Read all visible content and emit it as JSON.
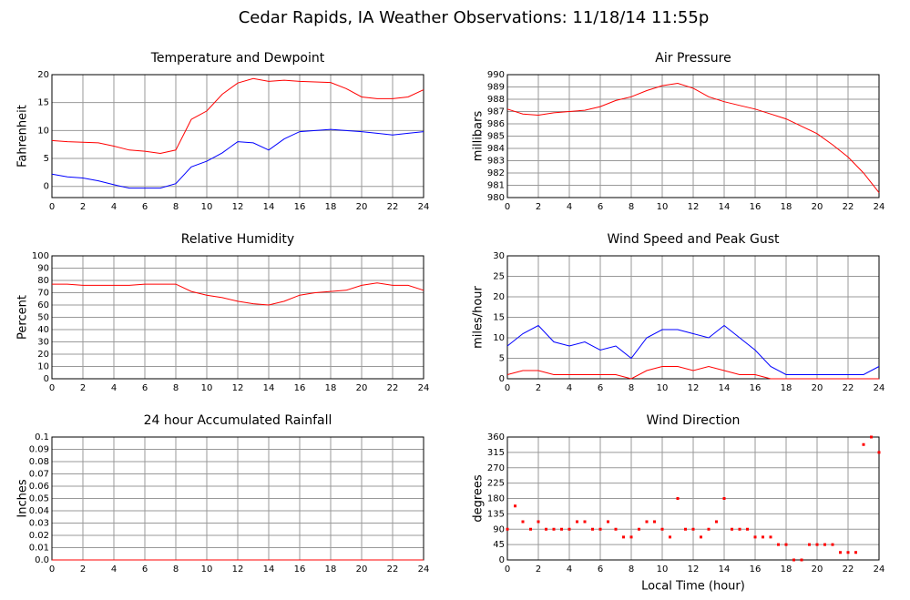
{
  "title": "Cedar Rapids, IA Weather Observations: 11/18/14 11:55p",
  "chart_data": [
    {
      "type": "line",
      "title": "Temperature and Dewpoint",
      "ylabel": "Fahrenheit",
      "x": [
        0,
        1,
        2,
        3,
        4,
        5,
        6,
        7,
        8,
        9,
        10,
        11,
        12,
        13,
        14,
        15,
        16,
        17,
        18,
        19,
        20,
        21,
        22,
        23,
        24
      ],
      "series": [
        {
          "color": "#ff0000",
          "values": [
            8.2,
            8,
            7.9,
            7.8,
            7.2,
            6.5,
            6.3,
            5.9,
            6.5,
            12,
            13.5,
            16.5,
            18.5,
            19.3,
            18.8,
            19,
            18.8,
            18.7,
            18.6,
            17.5,
            16,
            15.7,
            15.7,
            16,
            17.3
          ]
        },
        {
          "color": "#0000ff",
          "values": [
            2.2,
            1.7,
            1.5,
            1,
            0.3,
            -0.3,
            -0.3,
            -0.3,
            0.5,
            3.5,
            4.5,
            6,
            8,
            7.8,
            6.5,
            8.5,
            9.8,
            10,
            10.2,
            10,
            9.8,
            9.5,
            9.2,
            9.5,
            9.8
          ]
        }
      ],
      "xlim": [
        0,
        24
      ],
      "xticks": [
        0,
        2,
        4,
        6,
        8,
        10,
        12,
        14,
        16,
        18,
        20,
        22,
        24
      ],
      "ylim": [
        -2,
        20
      ],
      "yticks": [
        0,
        5,
        10,
        15,
        20
      ],
      "grid": true
    },
    {
      "type": "line",
      "title": "Air Pressure",
      "ylabel": "millibars",
      "x": [
        0,
        1,
        2,
        3,
        4,
        5,
        6,
        7,
        8,
        9,
        10,
        11,
        12,
        13,
        14,
        15,
        16,
        17,
        18,
        19,
        20,
        21,
        22,
        23,
        24
      ],
      "series": [
        {
          "color": "#ff0000",
          "values": [
            987.2,
            986.8,
            986.7,
            986.9,
            987,
            987.1,
            987.4,
            987.9,
            988.2,
            988.7,
            989.1,
            989.3,
            988.9,
            988.2,
            987.8,
            987.5,
            987.2,
            986.8,
            986.4,
            985.8,
            985.2,
            984.3,
            983.3,
            982,
            980.4
          ]
        }
      ],
      "xlim": [
        0,
        24
      ],
      "xticks": [
        0,
        2,
        4,
        6,
        8,
        10,
        12,
        14,
        16,
        18,
        20,
        22,
        24
      ],
      "ylim": [
        980,
        990
      ],
      "yticks": [
        980,
        981,
        982,
        983,
        984,
        985,
        986,
        987,
        988,
        989,
        990
      ],
      "grid": true
    },
    {
      "type": "line",
      "title": "Relative Humidity",
      "ylabel": "Percent",
      "x": [
        0,
        1,
        2,
        3,
        4,
        5,
        6,
        7,
        8,
        9,
        10,
        11,
        12,
        13,
        14,
        15,
        16,
        17,
        18,
        19,
        20,
        21,
        22,
        23,
        24
      ],
      "series": [
        {
          "color": "#ff0000",
          "values": [
            77,
            77,
            76,
            76,
            76,
            76,
            77,
            77,
            77,
            71,
            68,
            66,
            63,
            61,
            60,
            63,
            68,
            70,
            71,
            72,
            76,
            78,
            76,
            76,
            72
          ]
        }
      ],
      "xlim": [
        0,
        24
      ],
      "xticks": [
        0,
        2,
        4,
        6,
        8,
        10,
        12,
        14,
        16,
        18,
        20,
        22,
        24
      ],
      "ylim": [
        0,
        100
      ],
      "yticks": [
        0,
        10,
        20,
        30,
        40,
        50,
        60,
        70,
        80,
        90,
        100
      ],
      "grid": true
    },
    {
      "type": "line",
      "title": "Wind Speed and Peak Gust",
      "ylabel": "miles/hour",
      "x": [
        0,
        1,
        2,
        3,
        4,
        5,
        6,
        7,
        8,
        9,
        10,
        11,
        12,
        13,
        14,
        15,
        16,
        17,
        18,
        19,
        20,
        21,
        22,
        23,
        24
      ],
      "series": [
        {
          "color": "#0000ff",
          "values": [
            8,
            11,
            13,
            9,
            8,
            9,
            7,
            8,
            5,
            10,
            12,
            12,
            11,
            10,
            13,
            10,
            7,
            3,
            1,
            1,
            1,
            1,
            1,
            1,
            3
          ]
        },
        {
          "color": "#ff0000",
          "values": [
            1,
            2,
            2,
            1,
            1,
            1,
            1,
            1,
            0,
            2,
            3,
            3,
            2,
            3,
            2,
            1,
            1,
            0,
            0,
            0,
            0,
            0,
            0,
            0,
            0
          ]
        }
      ],
      "xlim": [
        0,
        24
      ],
      "xticks": [
        0,
        2,
        4,
        6,
        8,
        10,
        12,
        14,
        16,
        18,
        20,
        22,
        24
      ],
      "ylim": [
        0,
        30
      ],
      "yticks": [
        0,
        5,
        10,
        15,
        20,
        25,
        30
      ],
      "grid": true
    },
    {
      "type": "line",
      "title": "24 hour Accumulated Rainfall",
      "ylabel": "Inches",
      "x": [
        0,
        24
      ],
      "series": [
        {
          "color": "#ff0000",
          "values": [
            0,
            0
          ]
        }
      ],
      "xlim": [
        0,
        24
      ],
      "xticks": [
        0,
        2,
        4,
        6,
        8,
        10,
        12,
        14,
        16,
        18,
        20,
        22,
        24
      ],
      "ylim": [
        0,
        0.1
      ],
      "yticks": [
        {
          "value": 0,
          "label": "0.0"
        },
        0.01,
        0.02,
        0.03,
        0.04,
        0.05,
        0.06,
        0.07,
        0.08,
        0.09,
        0.1
      ],
      "grid": true
    },
    {
      "type": "scatter",
      "title": "Wind Direction",
      "ylabel": "degrees",
      "xlabel": "Local Time (hour)",
      "x": [
        0,
        0.5,
        1,
        1.5,
        2,
        2.5,
        3,
        3.5,
        4,
        4.5,
        5,
        5.5,
        6,
        6.5,
        7,
        7.5,
        8,
        8.5,
        9,
        9.5,
        10,
        10.5,
        11,
        11.5,
        12,
        12.5,
        13,
        13.5,
        14,
        14.5,
        15,
        15.5,
        16,
        16.5,
        17,
        17.5,
        18,
        18.5,
        19,
        19.5,
        20,
        20.5,
        21,
        21.5,
        22,
        22.5,
        23,
        23.5,
        24
      ],
      "series": [
        {
          "color": "#ff0000",
          "values": [
            90,
            158,
            112,
            90,
            112,
            90,
            90,
            90,
            90,
            112,
            112,
            90,
            90,
            112,
            90,
            67,
            67,
            90,
            112,
            112,
            90,
            67,
            180,
            90,
            90,
            67,
            90,
            112,
            180,
            90,
            90,
            90,
            67,
            67,
            67,
            45,
            45,
            0,
            0,
            45,
            45,
            45,
            45,
            22,
            22,
            22,
            338,
            360,
            315
          ]
        }
      ],
      "xlim": [
        0,
        24
      ],
      "xticks": [
        0,
        2,
        4,
        6,
        8,
        10,
        12,
        14,
        16,
        18,
        20,
        22,
        24
      ],
      "ylim": [
        0,
        360
      ],
      "yticks": [
        0,
        45,
        90,
        135,
        180,
        225,
        270,
        315,
        360
      ],
      "grid": true
    }
  ]
}
